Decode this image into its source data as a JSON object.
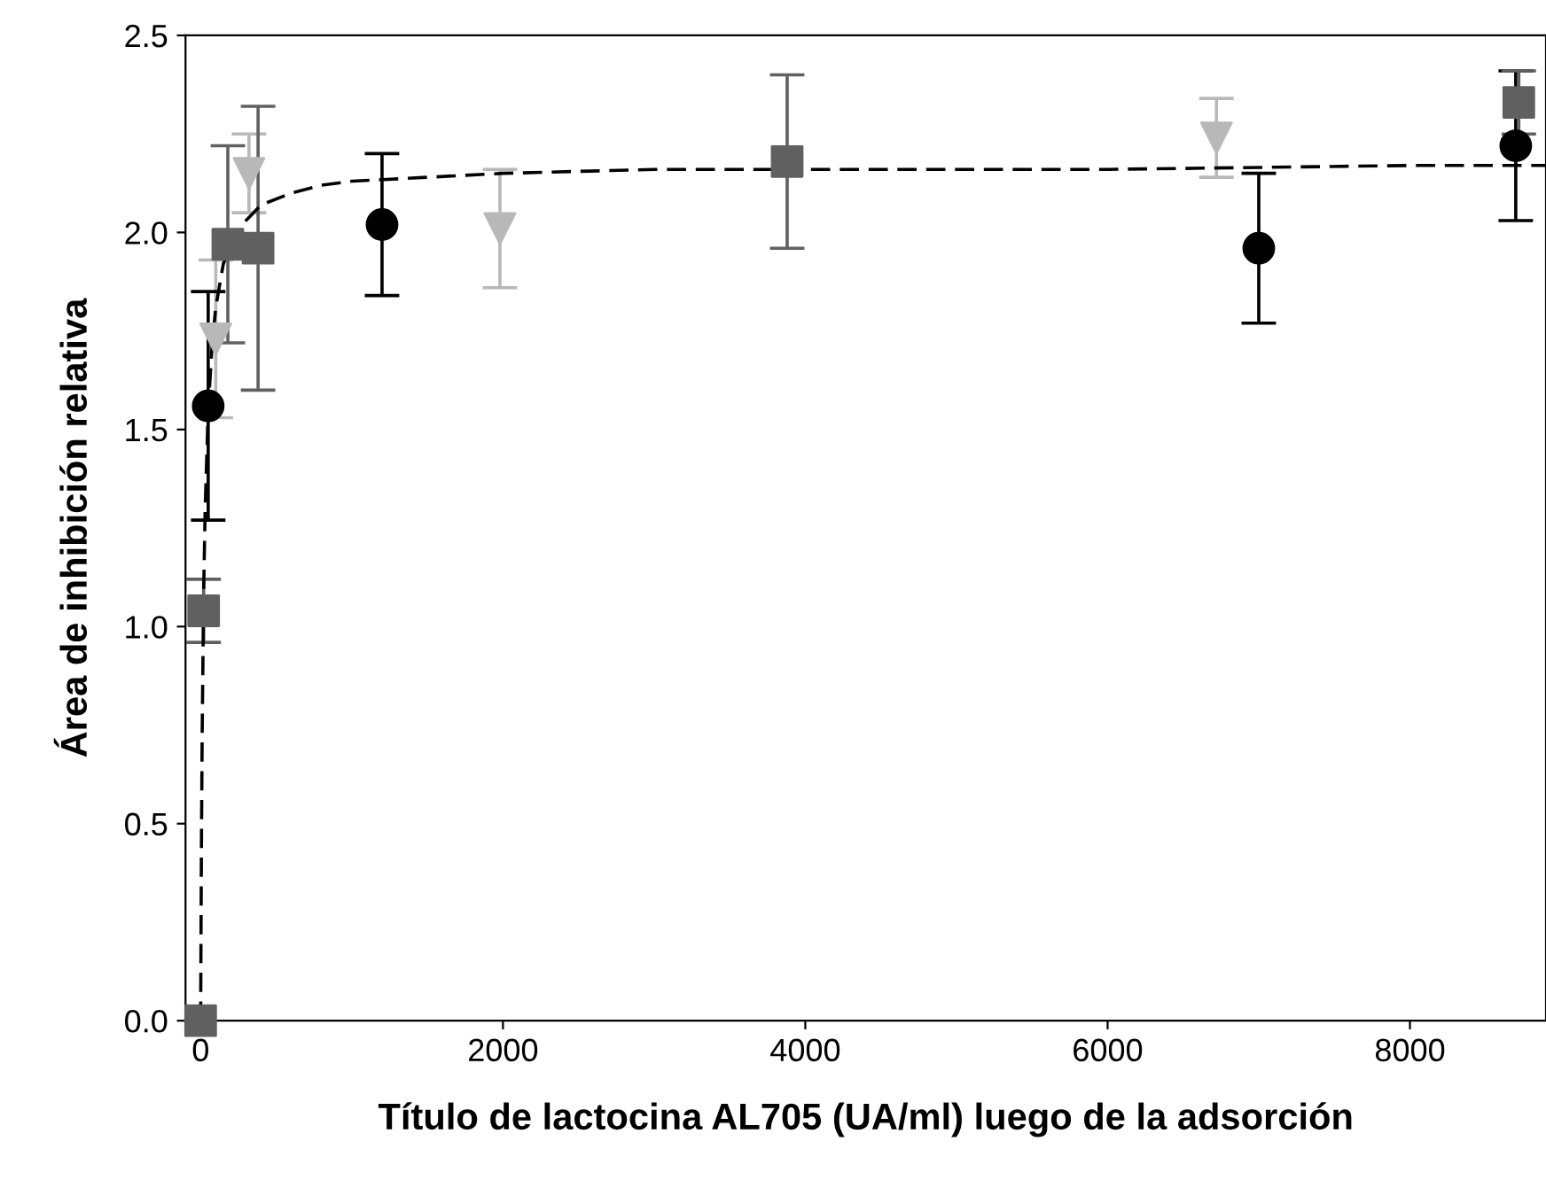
{
  "chart_data": {
    "type": "scatter",
    "xlabel": "Título de lactocina AL705 (UA/ml) luego de la adsorción",
    "ylabel": "Área de inhibición relativa",
    "xlim": [
      -100,
      8900
    ],
    "ylim": [
      0,
      2.5
    ],
    "xticks": [
      0,
      2000,
      4000,
      6000,
      8000
    ],
    "yticks": [
      {
        "value": 0,
        "label": "0.0"
      },
      0.5,
      {
        "value": 1,
        "label": "1.0"
      },
      1.5,
      {
        "value": 2,
        "label": "2.0"
      },
      2.5
    ],
    "grid": false,
    "series": [
      {
        "type": "line",
        "color": "#000000",
        "marker": "none",
        "line_style": "dashed",
        "x": [
          0,
          5,
          10,
          20,
          30,
          50,
          75,
          100,
          150,
          200,
          300,
          400,
          600,
          800,
          1000,
          1500,
          2000,
          3000,
          4000,
          6000,
          8000,
          8900
        ],
        "values": [
          0,
          0.43,
          0.72,
          1.09,
          1.3,
          1.55,
          1.71,
          1.81,
          1.92,
          1.97,
          2.03,
          2.07,
          2.1,
          2.12,
          2.13,
          2.14,
          2.15,
          2.16,
          2.16,
          2.16,
          2.17,
          2.17
        ]
      },
      {
        "color": "#b8b8b8",
        "marker": "triangle",
        "x": [
          100,
          320,
          1980,
          6720
        ],
        "values": [
          1.73,
          2.15,
          2.01,
          2.24
        ],
        "errors": [
          0.2,
          0.1,
          0.15,
          0.1
        ]
      },
      {
        "color": "#000000",
        "marker": "circle",
        "x": [
          50,
          1200,
          7000,
          8700
        ],
        "values": [
          1.56,
          2.02,
          1.96,
          2.22
        ],
        "errors": [
          0.29,
          0.18,
          0.19,
          0.19
        ]
      },
      {
        "color": "#606060",
        "marker": "square",
        "x": [
          0,
          20,
          180,
          380,
          3880,
          8720
        ],
        "values": [
          0,
          1.04,
          1.97,
          1.96,
          2.18,
          2.33
        ],
        "errors": [
          null,
          0.08,
          0.25,
          0.36,
          0.22,
          0.08
        ]
      }
    ]
  }
}
